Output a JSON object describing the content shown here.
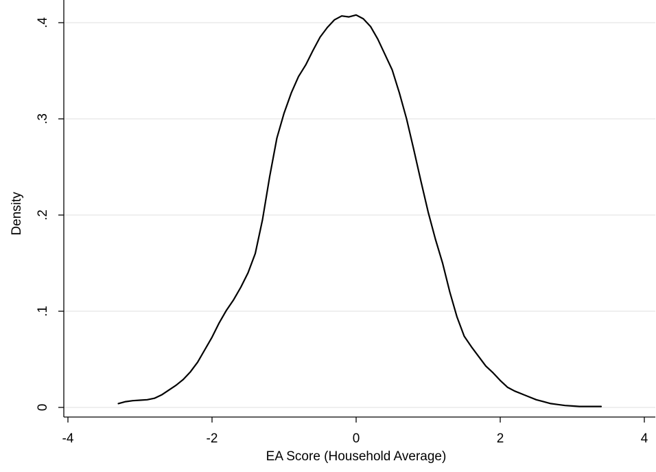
{
  "chart_data": {
    "type": "line",
    "title": "",
    "xlabel": "EA Score (Household Average)",
    "ylabel": "Density",
    "xlim": [
      -4,
      4
    ],
    "ylim": [
      0,
      0.41
    ],
    "x_ticks": [
      -4,
      -2,
      0,
      2,
      4
    ],
    "x_tick_labels": [
      "-4",
      "-2",
      "0",
      "2",
      "4"
    ],
    "y_ticks": [
      0,
      0.1,
      0.2,
      0.3,
      0.4
    ],
    "y_tick_labels": [
      "0",
      ".1",
      ".2",
      ".3",
      ".4"
    ],
    "grid": "horizontal",
    "legend": "none",
    "colors": {
      "line": "#000000",
      "grid": "#e5e5e5",
      "axis": "#000000",
      "background": "#ffffff"
    },
    "series": [
      {
        "x": [
          -3.3,
          -3.2,
          -3.1,
          -3.0,
          -2.9,
          -2.8,
          -2.7,
          -2.6,
          -2.5,
          -2.4,
          -2.3,
          -2.2,
          -2.1,
          -2.0,
          -1.9,
          -1.8,
          -1.7,
          -1.6,
          -1.5,
          -1.4,
          -1.3,
          -1.2,
          -1.1,
          -1.0,
          -0.9,
          -0.8,
          -0.7,
          -0.6,
          -0.5,
          -0.4,
          -0.3,
          -0.2,
          -0.1,
          0.0,
          0.1,
          0.2,
          0.3,
          0.4,
          0.5,
          0.6,
          0.7,
          0.8,
          0.9,
          1.0,
          1.1,
          1.2,
          1.3,
          1.4,
          1.5,
          1.6,
          1.7,
          1.8,
          1.9,
          2.0,
          2.1,
          2.2,
          2.3,
          2.4,
          2.5,
          2.6,
          2.7,
          2.8,
          2.9,
          3.0,
          3.1,
          3.2,
          3.3,
          3.4
        ],
        "values": [
          0.004,
          0.006,
          0.007,
          0.0075,
          0.008,
          0.0095,
          0.013,
          0.018,
          0.023,
          0.029,
          0.037,
          0.047,
          0.06,
          0.073,
          0.088,
          0.101,
          0.112,
          0.125,
          0.14,
          0.16,
          0.195,
          0.24,
          0.28,
          0.306,
          0.327,
          0.344,
          0.356,
          0.371,
          0.385,
          0.395,
          0.403,
          0.407,
          0.406,
          0.408,
          0.404,
          0.396,
          0.383,
          0.367,
          0.351,
          0.327,
          0.3,
          0.268,
          0.235,
          0.203,
          0.175,
          0.15,
          0.12,
          0.094,
          0.074,
          0.063,
          0.053,
          0.043,
          0.036,
          0.028,
          0.021,
          0.017,
          0.014,
          0.011,
          0.008,
          0.006,
          0.004,
          0.003,
          0.002,
          0.0015,
          0.001,
          0.001,
          0.001,
          0.001
        ]
      }
    ]
  }
}
